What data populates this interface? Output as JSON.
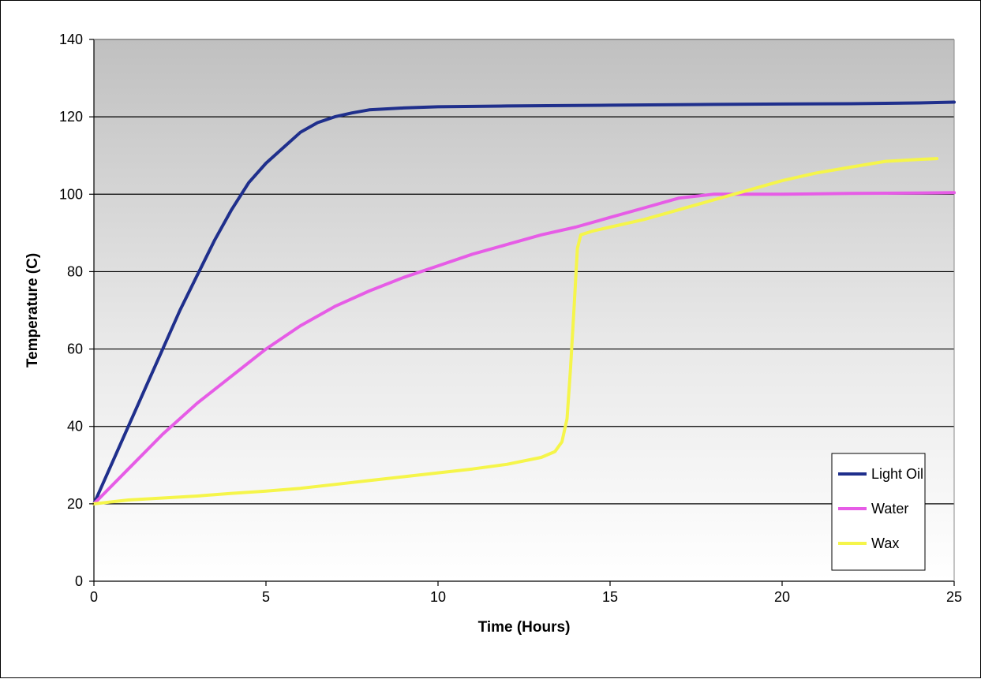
{
  "chart_data": {
    "type": "line",
    "title": "",
    "xlabel": "Time (Hours)",
    "ylabel": "Temperature (C)",
    "xlim": [
      0,
      25
    ],
    "ylim": [
      0,
      140
    ],
    "x_ticks": [
      0,
      5,
      10,
      15,
      20,
      25
    ],
    "y_ticks": [
      0,
      20,
      40,
      60,
      80,
      100,
      120,
      140
    ],
    "grid": "horizontal",
    "plot_background": "gradient gray (top) to white (bottom)",
    "legend_position": "bottom-right",
    "series": [
      {
        "name": "Light Oil",
        "color": "#1f2f8c",
        "points": [
          [
            0,
            20
          ],
          [
            0.5,
            30
          ],
          [
            1,
            40
          ],
          [
            1.5,
            50
          ],
          [
            2,
            60
          ],
          [
            2.5,
            70
          ],
          [
            3,
            79
          ],
          [
            3.5,
            88
          ],
          [
            4,
            96
          ],
          [
            4.5,
            103
          ],
          [
            5,
            108
          ],
          [
            5.5,
            112
          ],
          [
            6,
            116
          ],
          [
            6.5,
            118.5
          ],
          [
            7,
            120
          ],
          [
            7.5,
            121
          ],
          [
            8,
            121.8
          ],
          [
            9,
            122.3
          ],
          [
            10,
            122.6
          ],
          [
            12,
            122.8
          ],
          [
            15,
            123
          ],
          [
            18,
            123.2
          ],
          [
            20,
            123.3
          ],
          [
            22,
            123.4
          ],
          [
            24,
            123.6
          ],
          [
            25,
            123.8
          ]
        ]
      },
      {
        "name": "Water",
        "color": "#e65ce6",
        "points": [
          [
            0,
            20
          ],
          [
            1,
            29
          ],
          [
            2,
            38
          ],
          [
            3,
            46
          ],
          [
            4,
            53
          ],
          [
            5,
            60
          ],
          [
            6,
            66
          ],
          [
            7,
            71
          ],
          [
            8,
            75
          ],
          [
            9,
            78.5
          ],
          [
            10,
            81.5
          ],
          [
            11,
            84.5
          ],
          [
            12,
            87
          ],
          [
            13,
            89.5
          ],
          [
            14,
            91.5
          ],
          [
            15,
            94
          ],
          [
            16,
            96.5
          ],
          [
            17,
            99
          ],
          [
            18,
            100
          ],
          [
            20,
            100
          ],
          [
            22,
            100.2
          ],
          [
            24,
            100.3
          ],
          [
            25,
            100.4
          ]
        ]
      },
      {
        "name": "Wax",
        "color": "#f5f54a",
        "points": [
          [
            0,
            20
          ],
          [
            1,
            21
          ],
          [
            2,
            21.5
          ],
          [
            3,
            22
          ],
          [
            4,
            22.7
          ],
          [
            5,
            23.3
          ],
          [
            6,
            24
          ],
          [
            7,
            25
          ],
          [
            8,
            26
          ],
          [
            9,
            27
          ],
          [
            10,
            28
          ],
          [
            11,
            29
          ],
          [
            12,
            30.2
          ],
          [
            13,
            32
          ],
          [
            13.4,
            33.5
          ],
          [
            13.6,
            36
          ],
          [
            13.75,
            42
          ],
          [
            13.85,
            55
          ],
          [
            13.95,
            70
          ],
          [
            14.05,
            86
          ],
          [
            14.15,
            89.5
          ],
          [
            14.5,
            90.5
          ],
          [
            15,
            91.5
          ],
          [
            16,
            93.5
          ],
          [
            17,
            96
          ],
          [
            18,
            98.5
          ],
          [
            19,
            101
          ],
          [
            20,
            103.5
          ],
          [
            21,
            105.5
          ],
          [
            22,
            107
          ],
          [
            23,
            108.5
          ],
          [
            24,
            109
          ],
          [
            24.5,
            109.2
          ]
        ]
      }
    ]
  }
}
